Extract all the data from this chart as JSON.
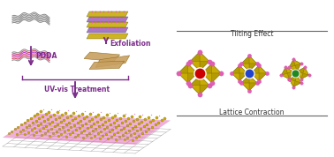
{
  "bg_color": "#ffffff",
  "arrow_color": "#7B2D8B",
  "label_pdda": "PDDA",
  "label_exfoliation": "Exfoliation",
  "label_uvvis": "UV-vis Treatment",
  "label_lattice": "Lattice Contraction",
  "label_tilting": "Tilting Effect",
  "graphene_color": "#888888",
  "perovskite_yellow": "#c8aa00",
  "perovskite_yellow2": "#b09800",
  "perovskite_pink": "#e060b0",
  "perovskite_dark": "#706000",
  "center_red": "#cc0000",
  "center_blue": "#2244cc",
  "center_green": "#228822",
  "sheet_tan": "#c8a060",
  "sheet_tan2": "#b89050",
  "font_size": 5.5,
  "arrow_lw": 1.3
}
